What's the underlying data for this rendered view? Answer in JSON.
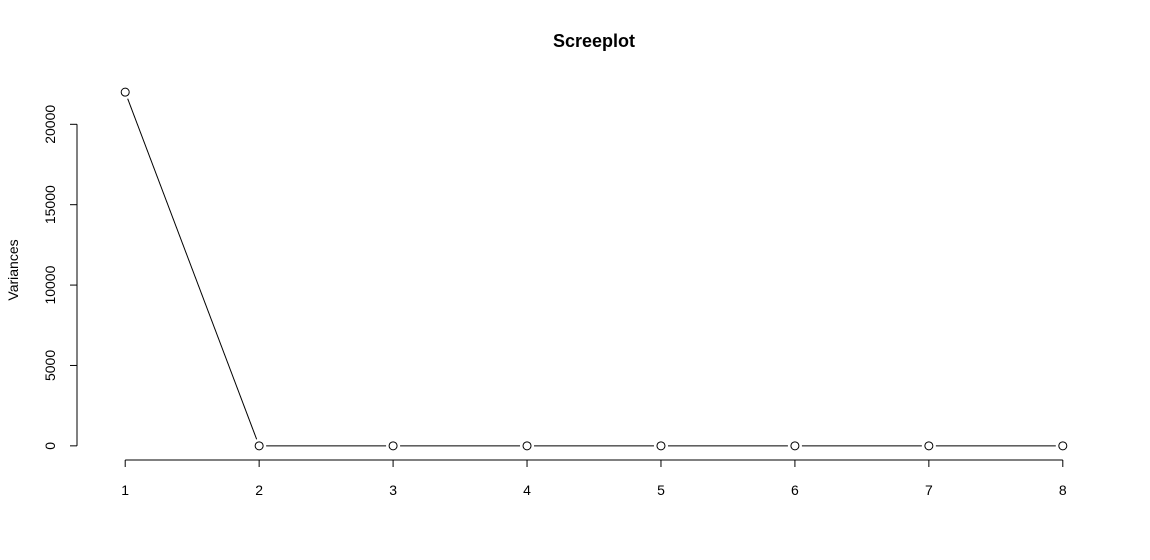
{
  "chart_data": {
    "type": "line",
    "title": "Screeplot",
    "xlabel": "",
    "ylabel": "Variances",
    "x": [
      1,
      2,
      3,
      4,
      5,
      6,
      7,
      8
    ],
    "values": [
      22000,
      0,
      0,
      0,
      0,
      0,
      0,
      0
    ],
    "xticks": [
      "1",
      "2",
      "3",
      "4",
      "5",
      "6",
      "7",
      "8"
    ],
    "yticks": [
      "0",
      "5000",
      "10000",
      "15000",
      "20000"
    ],
    "ytick_values": [
      0,
      5000,
      10000,
      15000,
      20000
    ],
    "xlim": [
      0.67,
      8.33
    ],
    "ylim": [
      -880,
      22880
    ],
    "markers": "open-circle",
    "grid": false,
    "legend": "none",
    "colors": {
      "line": "#000000",
      "marker_stroke": "#000000",
      "marker_fill": "#ffffff"
    }
  }
}
